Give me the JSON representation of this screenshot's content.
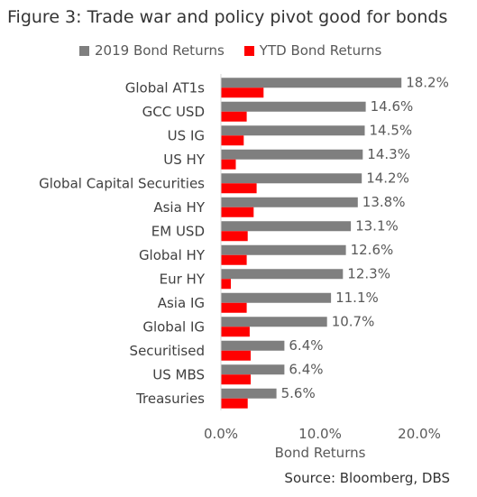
{
  "title": "Figure 3: Trade war and policy pivot good for bonds",
  "source": "Source: Bloomberg, DBS",
  "chart_data": {
    "type": "bar",
    "orientation": "horizontal",
    "categories": [
      "Global AT1s",
      "GCC USD",
      "US IG",
      "US HY",
      "Global Capital Securities",
      "Asia HY",
      "EM USD",
      "Global HY",
      "Eur HY",
      "Asia IG",
      "Global IG",
      "Securitised",
      "US MBS",
      "Treasuries"
    ],
    "series": [
      {
        "name": "2019 Bond Returns",
        "color": "#7f7f7f",
        "values": [
          18.2,
          14.6,
          14.5,
          14.3,
          14.2,
          13.8,
          13.1,
          12.6,
          12.3,
          11.1,
          10.7,
          6.4,
          6.4,
          5.6
        ],
        "data_labels": [
          "18.2%",
          "14.6%",
          "14.5%",
          "14.3%",
          "14.2%",
          "13.8%",
          "13.1%",
          "12.6%",
          "12.3%",
          "11.1%",
          "10.7%",
          "6.4%",
          "6.4%",
          "5.6%"
        ]
      },
      {
        "name": "YTD Bond Returns",
        "color": "#ff0000",
        "values": [
          4.3,
          2.6,
          2.3,
          1.5,
          3.6,
          3.3,
          2.7,
          2.6,
          1.0,
          2.6,
          2.9,
          3.0,
          3.0,
          2.7
        ]
      }
    ],
    "xlabel": "Bond Returns",
    "ylabel": "",
    "xlim": [
      0,
      20
    ],
    "xticks": [
      "0.0%",
      "10.0%",
      "20.0%"
    ],
    "grid": false,
    "legend_position": "top"
  }
}
